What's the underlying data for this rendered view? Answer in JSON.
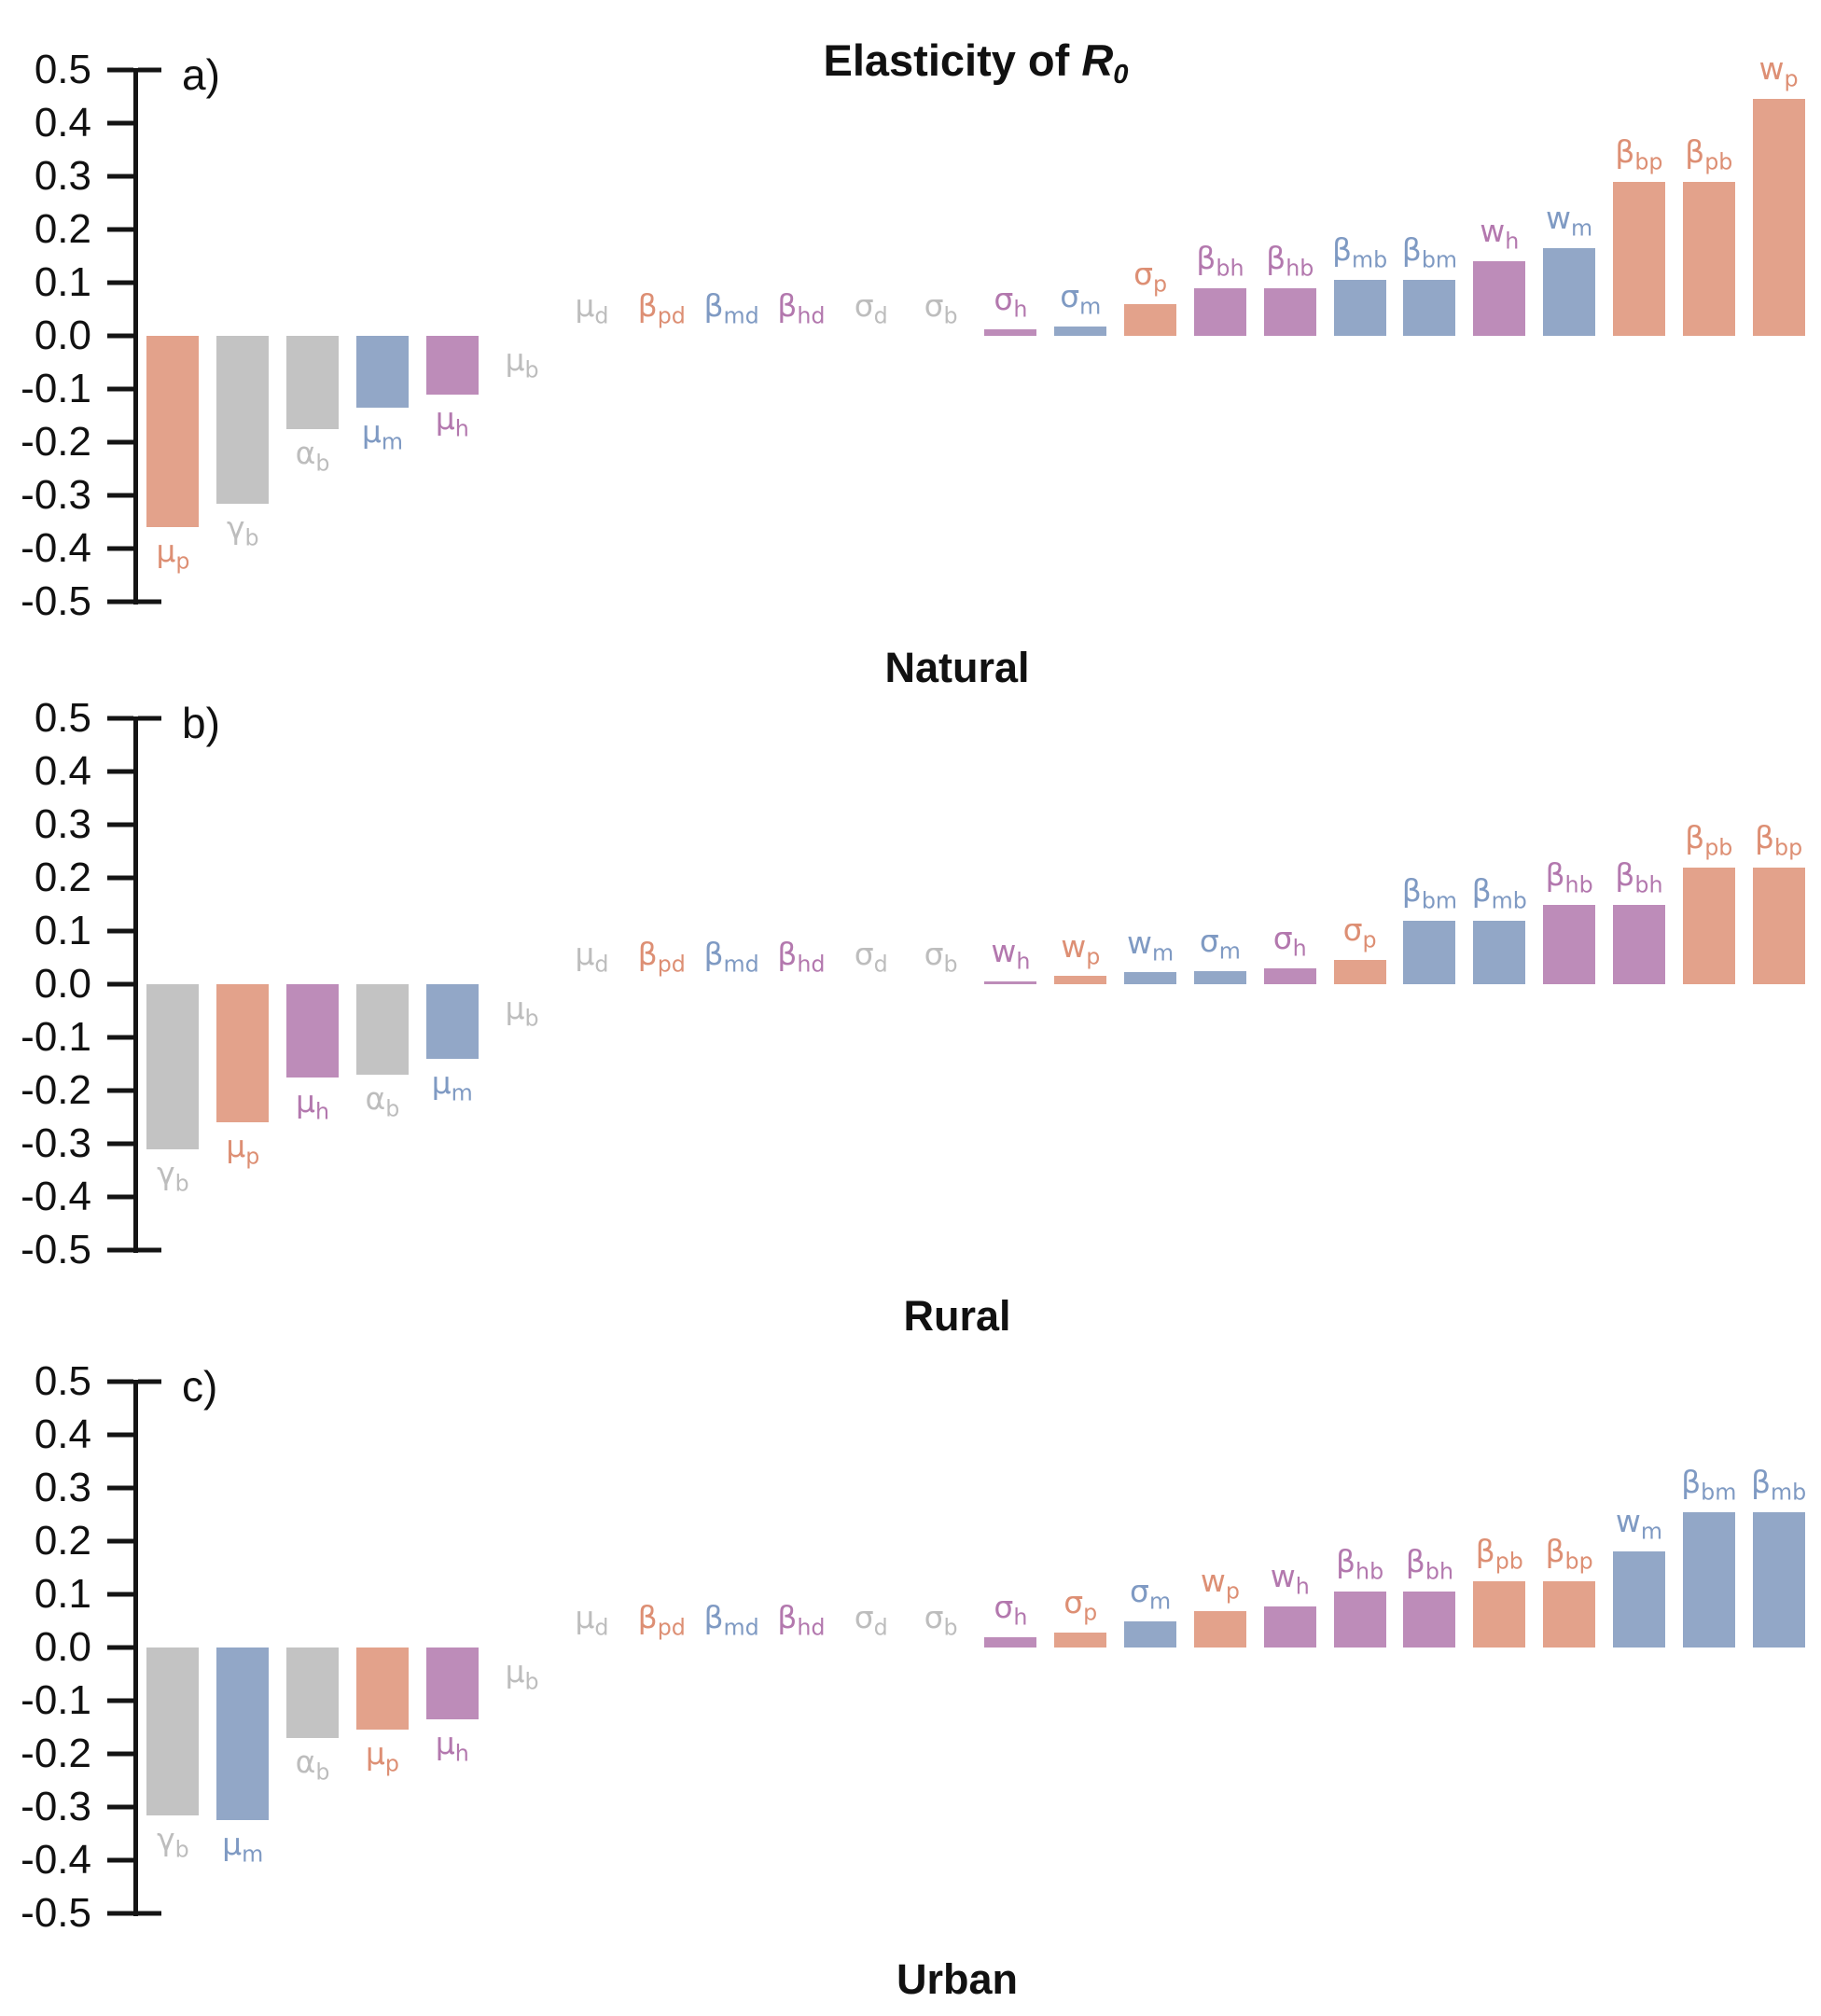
{
  "figure_title": {
    "text_prefix": "Elasticity of ",
    "symbol": "R",
    "subscript": "0"
  },
  "y_axis": {
    "tick_labels": [
      "0.5",
      "0.4",
      "0.3",
      "0.2",
      "0.1",
      "0.0",
      "-0.1",
      "-0.2",
      "-0.3",
      "-0.4",
      "-0.5"
    ],
    "tick_values": [
      0.5,
      0.4,
      0.3,
      0.2,
      0.1,
      0.0,
      -0.1,
      -0.2,
      -0.3,
      -0.4,
      -0.5
    ],
    "ymin": -0.5,
    "ymax": 0.5
  },
  "palette": {
    "orange": "#E3A28B",
    "gray": "#C3C3C3",
    "blue": "#92A7C7",
    "purple": "#BD8CB9"
  },
  "label_palette": {
    "orange": "#DD8F74",
    "gray": "#BDBDBD",
    "blue": "#7F9AC3",
    "purple": "#B378AE"
  },
  "chart_data": [
    {
      "type": "bar",
      "panel_letter": "a)",
      "caption": "Natural",
      "title": "Elasticity of R0",
      "ylim": [
        -0.5,
        0.5
      ],
      "grid": false,
      "bars": [
        {
          "name": "mu_p",
          "greek": "μ",
          "sub": "p",
          "value": -0.36,
          "color": "orange"
        },
        {
          "name": "gamma_b",
          "greek": "γ",
          "sub": "b",
          "value": -0.315,
          "color": "gray"
        },
        {
          "name": "alpha_b",
          "greek": "α",
          "sub": "b",
          "value": -0.175,
          "color": "gray"
        },
        {
          "name": "mu_m",
          "greek": "μ",
          "sub": "m",
          "value": -0.135,
          "color": "blue"
        },
        {
          "name": "mu_h",
          "greek": "μ",
          "sub": "h",
          "value": -0.11,
          "color": "purple"
        },
        {
          "name": "mu_b",
          "greek": "μ",
          "sub": "b",
          "value": -0.003,
          "color": "gray"
        },
        {
          "name": "mu_d",
          "greek": "μ",
          "sub": "d",
          "value": 0,
          "color": "gray"
        },
        {
          "name": "beta_pd",
          "greek": "β",
          "sub": "pd",
          "value": 0,
          "color": "orange"
        },
        {
          "name": "beta_md",
          "greek": "β",
          "sub": "md",
          "value": 0,
          "color": "blue"
        },
        {
          "name": "beta_hd",
          "greek": "β",
          "sub": "hd",
          "value": 0,
          "color": "purple"
        },
        {
          "name": "sigma_d",
          "greek": "σ",
          "sub": "d",
          "value": 0,
          "color": "gray"
        },
        {
          "name": "sigma_b",
          "greek": "σ",
          "sub": "b",
          "value": 0,
          "color": "gray"
        },
        {
          "name": "sigma_h",
          "greek": "σ",
          "sub": "h",
          "value": 0.012,
          "color": "purple"
        },
        {
          "name": "sigma_m",
          "greek": "σ",
          "sub": "m",
          "value": 0.018,
          "color": "blue"
        },
        {
          "name": "sigma_p",
          "greek": "σ",
          "sub": "p",
          "value": 0.06,
          "color": "orange"
        },
        {
          "name": "beta_bh",
          "greek": "β",
          "sub": "bh",
          "value": 0.09,
          "color": "purple"
        },
        {
          "name": "beta_hb",
          "greek": "β",
          "sub": "hb",
          "value": 0.09,
          "color": "purple"
        },
        {
          "name": "beta_mb",
          "greek": "β",
          "sub": "mb",
          "value": 0.105,
          "color": "blue"
        },
        {
          "name": "beta_bm",
          "greek": "β",
          "sub": "bm",
          "value": 0.105,
          "color": "blue"
        },
        {
          "name": "w_h",
          "greek": "w",
          "sub": "h",
          "value": 0.14,
          "color": "purple"
        },
        {
          "name": "w_m",
          "greek": "w",
          "sub": "m",
          "value": 0.165,
          "color": "blue"
        },
        {
          "name": "beta_bp",
          "greek": "β",
          "sub": "bp",
          "value": 0.29,
          "color": "orange"
        },
        {
          "name": "beta_pb",
          "greek": "β",
          "sub": "pb",
          "value": 0.29,
          "color": "orange"
        },
        {
          "name": "w_p",
          "greek": "w",
          "sub": "p",
          "value": 0.445,
          "color": "orange"
        }
      ]
    },
    {
      "type": "bar",
      "panel_letter": "b)",
      "caption": "Rural",
      "ylim": [
        -0.5,
        0.5
      ],
      "grid": false,
      "bars": [
        {
          "name": "gamma_b",
          "greek": "γ",
          "sub": "b",
          "value": -0.31,
          "color": "gray"
        },
        {
          "name": "mu_p",
          "greek": "μ",
          "sub": "p",
          "value": -0.26,
          "color": "orange"
        },
        {
          "name": "mu_h",
          "greek": "μ",
          "sub": "h",
          "value": -0.175,
          "color": "purple"
        },
        {
          "name": "alpha_b",
          "greek": "α",
          "sub": "b",
          "value": -0.17,
          "color": "gray"
        },
        {
          "name": "mu_m",
          "greek": "μ",
          "sub": "m",
          "value": -0.14,
          "color": "blue"
        },
        {
          "name": "mu_b",
          "greek": "μ",
          "sub": "b",
          "value": -0.003,
          "color": "gray"
        },
        {
          "name": "mu_d",
          "greek": "μ",
          "sub": "d",
          "value": 0,
          "color": "gray"
        },
        {
          "name": "beta_pd",
          "greek": "β",
          "sub": "pd",
          "value": 0,
          "color": "orange"
        },
        {
          "name": "beta_md",
          "greek": "β",
          "sub": "md",
          "value": 0,
          "color": "blue"
        },
        {
          "name": "beta_hd",
          "greek": "β",
          "sub": "hd",
          "value": 0,
          "color": "purple"
        },
        {
          "name": "sigma_d",
          "greek": "σ",
          "sub": "d",
          "value": 0,
          "color": "gray"
        },
        {
          "name": "sigma_b",
          "greek": "σ",
          "sub": "b",
          "value": 0,
          "color": "gray"
        },
        {
          "name": "w_h",
          "greek": "w",
          "sub": "h",
          "value": 0.005,
          "color": "purple"
        },
        {
          "name": "w_p",
          "greek": "w",
          "sub": "p",
          "value": 0.015,
          "color": "orange"
        },
        {
          "name": "w_m",
          "greek": "w",
          "sub": "m",
          "value": 0.022,
          "color": "blue"
        },
        {
          "name": "sigma_m",
          "greek": "σ",
          "sub": "m",
          "value": 0.025,
          "color": "blue"
        },
        {
          "name": "sigma_h",
          "greek": "σ",
          "sub": "h",
          "value": 0.03,
          "color": "purple"
        },
        {
          "name": "sigma_p",
          "greek": "σ",
          "sub": "p",
          "value": 0.045,
          "color": "orange"
        },
        {
          "name": "beta_bm",
          "greek": "β",
          "sub": "bm",
          "value": 0.12,
          "color": "blue"
        },
        {
          "name": "beta_mb",
          "greek": "β",
          "sub": "mb",
          "value": 0.12,
          "color": "blue"
        },
        {
          "name": "beta_hb",
          "greek": "β",
          "sub": "hb",
          "value": 0.15,
          "color": "purple"
        },
        {
          "name": "beta_bh",
          "greek": "β",
          "sub": "bh",
          "value": 0.15,
          "color": "purple"
        },
        {
          "name": "beta_pb",
          "greek": "β",
          "sub": "pb",
          "value": 0.22,
          "color": "orange"
        },
        {
          "name": "beta_bp",
          "greek": "β",
          "sub": "bp",
          "value": 0.22,
          "color": "orange"
        }
      ]
    },
    {
      "type": "bar",
      "panel_letter": "c)",
      "caption": "Urban",
      "ylim": [
        -0.5,
        0.5
      ],
      "grid": false,
      "bars": [
        {
          "name": "gamma_b",
          "greek": "γ",
          "sub": "b",
          "value": -0.315,
          "color": "gray"
        },
        {
          "name": "mu_m",
          "greek": "μ",
          "sub": "m",
          "value": -0.325,
          "color": "blue"
        },
        {
          "name": "alpha_b",
          "greek": "α",
          "sub": "b",
          "value": -0.17,
          "color": "gray"
        },
        {
          "name": "mu_p",
          "greek": "μ",
          "sub": "p",
          "value": -0.155,
          "color": "orange"
        },
        {
          "name": "mu_h",
          "greek": "μ",
          "sub": "h",
          "value": -0.135,
          "color": "purple"
        },
        {
          "name": "mu_b",
          "greek": "μ",
          "sub": "b",
          "value": -0.003,
          "color": "gray"
        },
        {
          "name": "mu_d",
          "greek": "μ",
          "sub": "d",
          "value": 0,
          "color": "gray"
        },
        {
          "name": "beta_pd",
          "greek": "β",
          "sub": "pd",
          "value": 0,
          "color": "orange"
        },
        {
          "name": "beta_md",
          "greek": "β",
          "sub": "md",
          "value": 0,
          "color": "blue"
        },
        {
          "name": "beta_hd",
          "greek": "β",
          "sub": "hd",
          "value": 0,
          "color": "purple"
        },
        {
          "name": "sigma_d",
          "greek": "σ",
          "sub": "d",
          "value": 0,
          "color": "gray"
        },
        {
          "name": "sigma_b",
          "greek": "σ",
          "sub": "b",
          "value": 0,
          "color": "gray"
        },
        {
          "name": "sigma_h",
          "greek": "σ",
          "sub": "h",
          "value": 0.02,
          "color": "purple"
        },
        {
          "name": "sigma_p",
          "greek": "σ",
          "sub": "p",
          "value": 0.028,
          "color": "orange"
        },
        {
          "name": "sigma_m",
          "greek": "σ",
          "sub": "m",
          "value": 0.05,
          "color": "blue"
        },
        {
          "name": "w_p",
          "greek": "w",
          "sub": "p",
          "value": 0.068,
          "color": "orange"
        },
        {
          "name": "w_h",
          "greek": "w",
          "sub": "h",
          "value": 0.078,
          "color": "purple"
        },
        {
          "name": "beta_hb",
          "greek": "β",
          "sub": "hb",
          "value": 0.105,
          "color": "purple"
        },
        {
          "name": "beta_bh",
          "greek": "β",
          "sub": "bh",
          "value": 0.105,
          "color": "purple"
        },
        {
          "name": "beta_pb",
          "greek": "β",
          "sub": "pb",
          "value": 0.125,
          "color": "orange"
        },
        {
          "name": "beta_bp",
          "greek": "β",
          "sub": "bp",
          "value": 0.125,
          "color": "orange"
        },
        {
          "name": "w_m",
          "greek": "w",
          "sub": "m",
          "value": 0.18,
          "color": "blue"
        },
        {
          "name": "beta_bm",
          "greek": "β",
          "sub": "bm",
          "value": 0.255,
          "color": "blue"
        },
        {
          "name": "beta_mb",
          "greek": "β",
          "sub": "mb",
          "value": 0.255,
          "color": "blue"
        }
      ]
    }
  ]
}
